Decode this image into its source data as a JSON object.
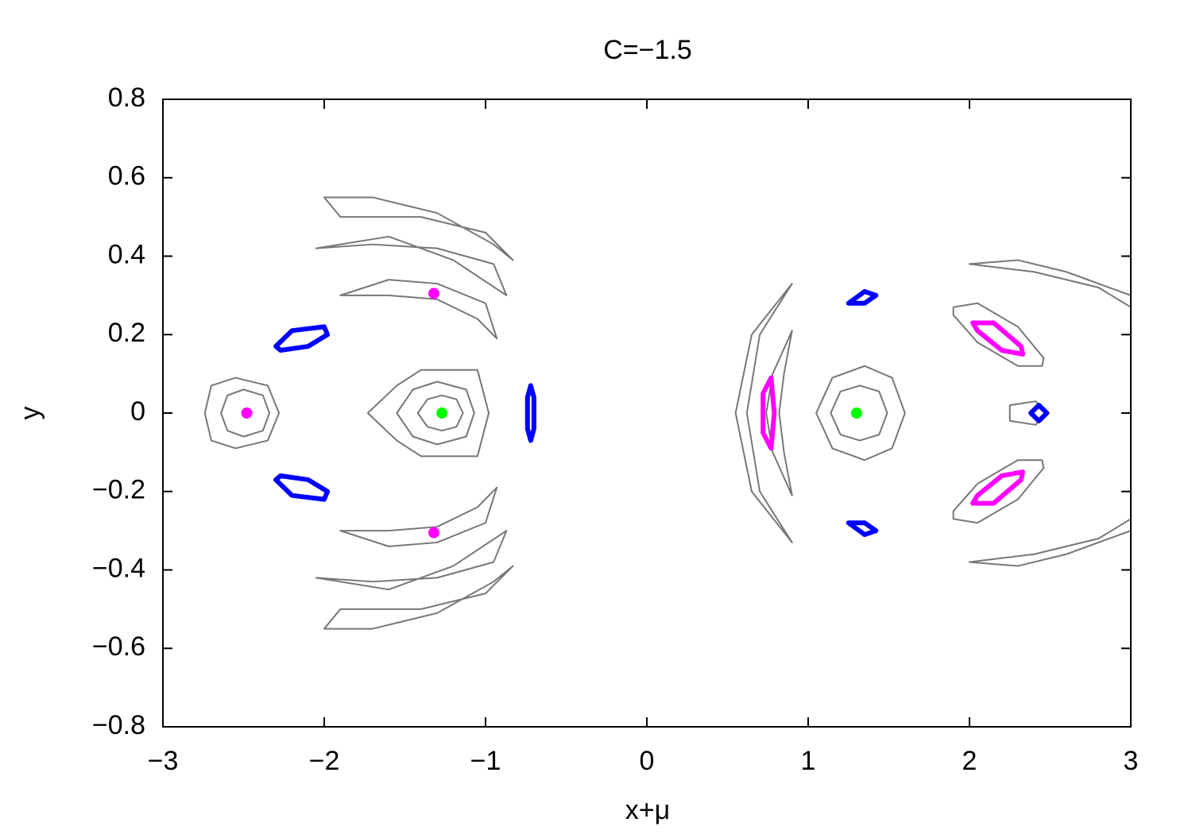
{
  "chart_data": {
    "type": "scatter",
    "title": "C=−1.5",
    "x_label": "x+μ",
    "y_label": "y",
    "xlim": [
      -3,
      3
    ],
    "ylim": [
      -0.8,
      0.8
    ],
    "xticks": [
      {
        "value": -3,
        "label": "−3"
      },
      {
        "value": -2,
        "label": "−2"
      },
      {
        "value": -1,
        "label": "−1"
      },
      0,
      1,
      2,
      3
    ],
    "yticks": [
      {
        "value": -0.8,
        "label": "−0.8"
      },
      {
        "value": -0.6,
        "label": "−0.6"
      },
      {
        "value": -0.4,
        "label": "−0.4"
      },
      {
        "value": -0.2,
        "label": "−0.2"
      },
      0,
      0.2,
      0.4,
      0.6,
      0.8
    ],
    "series": [
      {
        "color": "#777777",
        "x": [
          -2.74,
          -2.7,
          -2.55,
          -2.35,
          -2.28,
          -2.35,
          -2.55,
          -2.7
        ],
        "y": [
          0,
          0.07,
          0.09,
          0.07,
          0,
          -0.07,
          -0.09,
          -0.07
        ]
      },
      {
        "color": "#777777",
        "x": [
          -2.64,
          -2.6,
          -2.5,
          -2.38,
          -2.34,
          -2.38,
          -2.5,
          -2.6
        ],
        "y": [
          0,
          0.045,
          0.06,
          0.045,
          0,
          -0.045,
          -0.06,
          -0.045
        ]
      },
      {
        "color": "#777777",
        "x": [
          -1.73,
          -1.55,
          -1.4,
          -1.05,
          -0.98,
          -1.05,
          -1.4,
          -1.55
        ],
        "y": [
          0,
          0.07,
          0.11,
          0.11,
          0,
          -0.11,
          -0.11,
          -0.07
        ]
      },
      {
        "color": "#777777",
        "x": [
          -1.55,
          -1.45,
          -1.3,
          -1.12,
          -1.07,
          -1.12,
          -1.3,
          -1.45
        ],
        "y": [
          0,
          0.06,
          0.08,
          0.06,
          0,
          -0.06,
          -0.08,
          -0.06
        ]
      },
      {
        "color": "#777777",
        "x": [
          -1.42,
          -1.36,
          -1.27,
          -1.18,
          -1.14,
          -1.18,
          -1.27,
          -1.36
        ],
        "y": [
          0,
          0.035,
          0.045,
          0.035,
          0,
          -0.035,
          -0.045,
          -0.035
        ]
      },
      {
        "color": "#777777",
        "x": [
          -1.9,
          -1.6,
          -1.3,
          -1.0,
          -0.93,
          -1.05,
          -1.3,
          -1.6
        ],
        "y": [
          0.3,
          0.34,
          0.33,
          0.28,
          0.19,
          0.24,
          0.29,
          0.3
        ]
      },
      {
        "color": "#777777",
        "x": [
          -1.9,
          -1.6,
          -1.3,
          -1.0,
          -0.93,
          -1.05,
          -1.3,
          -1.6
        ],
        "y": [
          -0.3,
          -0.34,
          -0.33,
          -0.28,
          -0.19,
          -0.24,
          -0.29,
          -0.3
        ]
      },
      {
        "color": "#777777",
        "x": [
          -2.05,
          -1.6,
          -1.2,
          -0.87,
          -0.95,
          -1.3,
          -1.7
        ],
        "y": [
          0.42,
          0.45,
          0.39,
          0.3,
          0.38,
          0.42,
          0.43
        ]
      },
      {
        "color": "#777777",
        "x": [
          -2.05,
          -1.6,
          -1.2,
          -0.87,
          -0.95,
          -1.3,
          -1.7
        ],
        "y": [
          -0.42,
          -0.45,
          -0.39,
          -0.3,
          -0.38,
          -0.42,
          -0.43
        ]
      },
      {
        "color": "#777777",
        "x": [
          -2.0,
          -1.7,
          -1.3,
          -0.95,
          -0.83,
          -1.0,
          -1.4,
          -1.9
        ],
        "y": [
          0.55,
          0.55,
          0.51,
          0.43,
          0.39,
          0.46,
          0.5,
          0.5
        ]
      },
      {
        "color": "#777777",
        "x": [
          -2.0,
          -1.7,
          -1.3,
          -0.95,
          -0.83,
          -1.0,
          -1.4,
          -1.9
        ],
        "y": [
          -0.55,
          -0.55,
          -0.51,
          -0.43,
          -0.39,
          -0.46,
          -0.5,
          -0.5
        ]
      },
      {
        "color": "#777777",
        "x": [
          1.05,
          1.15,
          1.35,
          1.52,
          1.6,
          1.52,
          1.35,
          1.15
        ],
        "y": [
          0,
          0.09,
          0.12,
          0.09,
          0,
          -0.09,
          -0.12,
          -0.09
        ]
      },
      {
        "color": "#777777",
        "x": [
          1.14,
          1.2,
          1.32,
          1.44,
          1.49,
          1.44,
          1.32,
          1.2
        ],
        "y": [
          0,
          0.055,
          0.07,
          0.055,
          0,
          -0.055,
          -0.07,
          -0.055
        ]
      },
      {
        "color": "#777777",
        "x": [
          0.9,
          0.65,
          0.55,
          0.65,
          0.9,
          0.7,
          0.62,
          0.7
        ],
        "y": [
          0.33,
          0.2,
          0,
          -0.2,
          -0.33,
          -0.2,
          0,
          0.2
        ]
      },
      {
        "color": "#777777",
        "x": [
          0.9,
          0.78,
          0.74,
          0.78,
          0.9,
          0.85,
          0.82,
          0.85
        ],
        "y": [
          0.21,
          0.1,
          0,
          -0.1,
          -0.21,
          -0.1,
          0,
          0.1
        ]
      },
      {
        "color": "#777777",
        "x": [
          1.9,
          2.05,
          2.3,
          2.46,
          2.45,
          2.3,
          2.05,
          1.9
        ],
        "y": [
          0.27,
          0.28,
          0.22,
          0.14,
          0.12,
          0.12,
          0.18,
          0.25
        ]
      },
      {
        "color": "#777777",
        "x": [
          1.9,
          2.05,
          2.3,
          2.46,
          2.45,
          2.3,
          2.05,
          1.9
        ],
        "y": [
          -0.27,
          -0.28,
          -0.22,
          -0.14,
          -0.12,
          -0.12,
          -0.18,
          -0.25
        ]
      },
      {
        "color": "#777777",
        "x": [
          2.0,
          2.4,
          2.8,
          3.0,
          3.0,
          2.6,
          2.3
        ],
        "y": [
          0.38,
          0.36,
          0.32,
          0.27,
          0.3,
          0.36,
          0.39
        ]
      },
      {
        "color": "#777777",
        "x": [
          2.0,
          2.4,
          2.8,
          3.0,
          3.0,
          2.6,
          2.3
        ],
        "y": [
          -0.38,
          -0.36,
          -0.32,
          -0.27,
          -0.3,
          -0.36,
          -0.39
        ]
      },
      {
        "color": "#777777",
        "x": [
          2.25,
          2.41,
          2.48,
          2.41,
          2.25
        ],
        "y": [
          0.02,
          0.03,
          0,
          -0.03,
          -0.02
        ]
      },
      {
        "color": "#0000ff",
        "x": [
          -2.3,
          -2.2,
          -2.0,
          -1.98,
          -2.1,
          -2.27
        ],
        "y": [
          0.17,
          0.21,
          0.22,
          0.2,
          0.17,
          0.16
        ]
      },
      {
        "color": "#0000ff",
        "x": [
          -2.3,
          -2.2,
          -2.0,
          -1.98,
          -2.1,
          -2.27
        ],
        "y": [
          -0.17,
          -0.21,
          -0.22,
          -0.2,
          -0.17,
          -0.16
        ]
      },
      {
        "color": "#0000ff",
        "x": [
          -0.72,
          -0.7,
          -0.7,
          -0.72,
          -0.74,
          -0.74
        ],
        "y": [
          0.07,
          0.04,
          -0.04,
          -0.07,
          -0.04,
          0.04
        ]
      },
      {
        "color": "#0000ff",
        "x": [
          1.25,
          1.35,
          1.42,
          1.35
        ],
        "y": [
          0.28,
          0.31,
          0.3,
          0.28
        ]
      },
      {
        "color": "#0000ff",
        "x": [
          1.25,
          1.35,
          1.42,
          1.35
        ],
        "y": [
          -0.28,
          -0.31,
          -0.3,
          -0.28
        ]
      },
      {
        "color": "#0000ff",
        "x": [
          2.38,
          2.43,
          2.48,
          2.43
        ],
        "y": [
          0,
          0.02,
          0,
          -0.02
        ]
      },
      {
        "color": "#ff00ff",
        "x": [
          0.77,
          0.79,
          0.77,
          0.72,
          0.72
        ],
        "y": [
          0.09,
          0,
          -0.09,
          -0.05,
          0.05
        ]
      },
      {
        "color": "#ff00ff",
        "x": [
          2.02,
          2.15,
          2.32,
          2.33,
          2.2,
          2.05
        ],
        "y": [
          0.23,
          0.23,
          0.17,
          0.15,
          0.16,
          0.21
        ]
      },
      {
        "color": "#ff00ff",
        "x": [
          2.02,
          2.15,
          2.32,
          2.33,
          2.2,
          2.05
        ],
        "y": [
          -0.23,
          -0.23,
          -0.17,
          -0.15,
          -0.16,
          -0.21
        ]
      },
      {
        "color": "#ff00ff",
        "x": [
          -2.48
        ],
        "y": [
          0
        ]
      },
      {
        "color": "#ff00ff",
        "x": [
          -1.32
        ],
        "y": [
          0.305
        ]
      },
      {
        "color": "#ff00ff",
        "x": [
          -1.32
        ],
        "y": [
          -0.305
        ]
      },
      {
        "color": "#00ff00",
        "x": [
          -1.27
        ],
        "y": [
          0
        ]
      },
      {
        "color": "#00ff00",
        "x": [
          1.3
        ],
        "y": [
          0
        ]
      }
    ]
  }
}
